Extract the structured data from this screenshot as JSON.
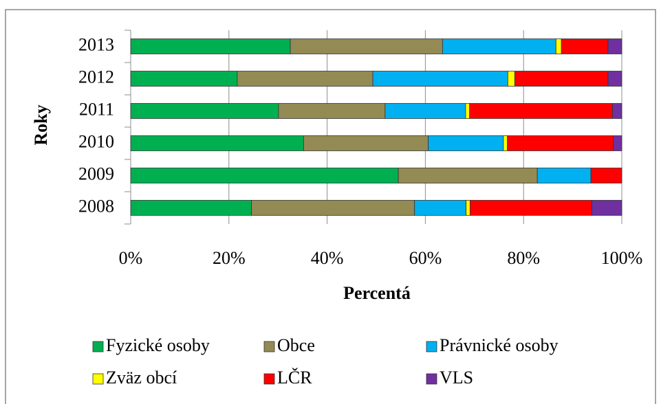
{
  "chart_data": {
    "type": "stacked-bar-horizontal",
    "x_label": "Percentá",
    "y_label": "Roky",
    "categories": [
      "2008",
      "2009",
      "2010",
      "2011",
      "2012",
      "2013"
    ],
    "series": [
      {
        "name": "Fyzické osoby",
        "color": "#00b050",
        "values": [
          24.6,
          54.5,
          35.2,
          30.1,
          21.7,
          32.5
        ]
      },
      {
        "name": "Obce",
        "color": "#948a54",
        "values": [
          33.2,
          28.3,
          25.4,
          21.7,
          27.6,
          31.0
        ]
      },
      {
        "name": "Právnické osoby",
        "color": "#00b0f0",
        "values": [
          10.5,
          10.9,
          15.3,
          16.4,
          27.5,
          23.1
        ]
      },
      {
        "name": "Zväz obcí",
        "color": "#ffff00",
        "values": [
          0.8,
          0,
          0.8,
          0.8,
          1.4,
          1.1
        ]
      },
      {
        "name": "LČR",
        "color": "#ff0000",
        "values": [
          24.8,
          6.3,
          21.6,
          29.1,
          19.0,
          9.5
        ]
      },
      {
        "name": "VLS",
        "color": "#7030a0",
        "values": [
          6.1,
          0,
          1.7,
          1.9,
          2.8,
          2.8
        ]
      }
    ],
    "xlim": [
      0,
      100
    ],
    "xticks": [
      {
        "value": 0,
        "label": "0%"
      },
      {
        "value": 20,
        "label": "20%"
      },
      {
        "value": 40,
        "label": "40%"
      },
      {
        "value": 60,
        "label": "60%"
      },
      {
        "value": 80,
        "label": "80%"
      },
      {
        "value": 100,
        "label": "100%"
      }
    ],
    "grid": true,
    "legend": "bottom"
  }
}
